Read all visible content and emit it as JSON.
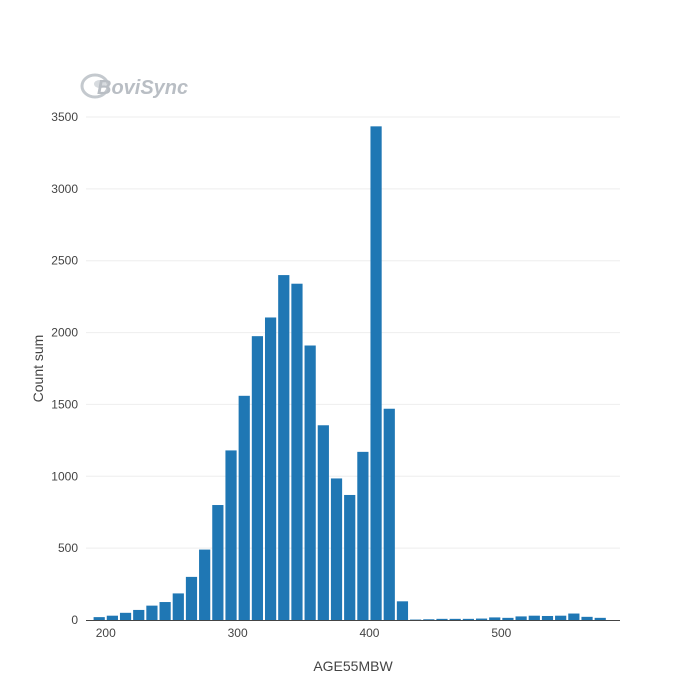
{
  "logo": {
    "text": "BoviSync"
  },
  "chart_data": {
    "type": "bar",
    "xlabel": "AGE55MBW",
    "ylabel": "Count sum",
    "xlim": [
      185,
      590
    ],
    "ylim": [
      0,
      3500
    ],
    "x_ticks": [
      200,
      300,
      400,
      500
    ],
    "y_ticks": [
      0,
      500,
      1000,
      1500,
      2000,
      2500,
      3000,
      3500
    ],
    "grid": true,
    "bar_width": 8.5,
    "bar_color": "#1f77b4",
    "x": [
      195,
      205,
      215,
      225,
      235,
      245,
      255,
      265,
      275,
      285,
      295,
      305,
      315,
      325,
      335,
      345,
      355,
      365,
      375,
      385,
      395,
      405,
      415,
      425,
      435,
      445,
      455,
      465,
      475,
      485,
      495,
      505,
      515,
      525,
      535,
      545,
      555,
      565,
      575
    ],
    "values": [
      20,
      30,
      50,
      70,
      100,
      125,
      185,
      300,
      490,
      800,
      1180,
      1560,
      1975,
      2105,
      2400,
      2340,
      1910,
      1355,
      985,
      870,
      1170,
      3435,
      1470,
      130,
      3,
      5,
      8,
      8,
      8,
      10,
      18,
      15,
      25,
      30,
      28,
      30,
      45,
      22,
      15
    ]
  }
}
